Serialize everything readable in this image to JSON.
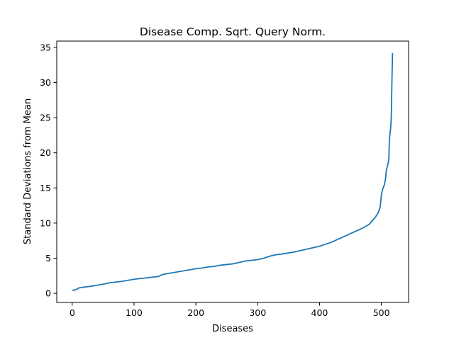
{
  "chart_data": {
    "type": "line",
    "title": "Disease Comp. Sqrt. Query Norm.",
    "xlabel": "Diseases",
    "ylabel": "Standard Deviations from Mean",
    "xlim": [
      -25,
      544
    ],
    "ylim": [
      -1.3,
      35.9
    ],
    "xticks": [
      0,
      100,
      200,
      300,
      400,
      500
    ],
    "yticks": [
      0,
      5,
      10,
      15,
      20,
      25,
      30,
      35
    ],
    "grid": false,
    "series": [
      {
        "color": "#1f77b4",
        "x": [
          0,
          5,
          8,
          10,
          20,
          30,
          40,
          50,
          60,
          70,
          80,
          90,
          100,
          110,
          120,
          130,
          140,
          145,
          150,
          160,
          170,
          180,
          190,
          200,
          210,
          220,
          230,
          240,
          250,
          260,
          270,
          280,
          290,
          300,
          310,
          320,
          330,
          340,
          350,
          360,
          370,
          380,
          390,
          400,
          410,
          420,
          430,
          440,
          450,
          460,
          470,
          480,
          490,
          495,
          497,
          498,
          500,
          502,
          505,
          507,
          508,
          510,
          512,
          513,
          515,
          516,
          517,
          518
        ],
        "values": [
          0.4,
          0.5,
          0.6,
          0.75,
          0.9,
          1.0,
          1.15,
          1.3,
          1.5,
          1.6,
          1.7,
          1.85,
          2.0,
          2.1,
          2.2,
          2.3,
          2.4,
          2.65,
          2.75,
          2.9,
          3.05,
          3.2,
          3.35,
          3.5,
          3.6,
          3.75,
          3.85,
          4.0,
          4.1,
          4.2,
          4.4,
          4.6,
          4.7,
          4.8,
          5.0,
          5.3,
          5.5,
          5.6,
          5.75,
          5.9,
          6.1,
          6.3,
          6.5,
          6.7,
          7.0,
          7.3,
          7.7,
          8.1,
          8.5,
          8.9,
          9.3,
          9.8,
          10.8,
          11.5,
          12.0,
          12.3,
          14.0,
          14.8,
          15.5,
          16.5,
          17.5,
          18.2,
          19.0,
          22.0,
          23.5,
          25.0,
          30.0,
          34.2
        ]
      }
    ]
  }
}
